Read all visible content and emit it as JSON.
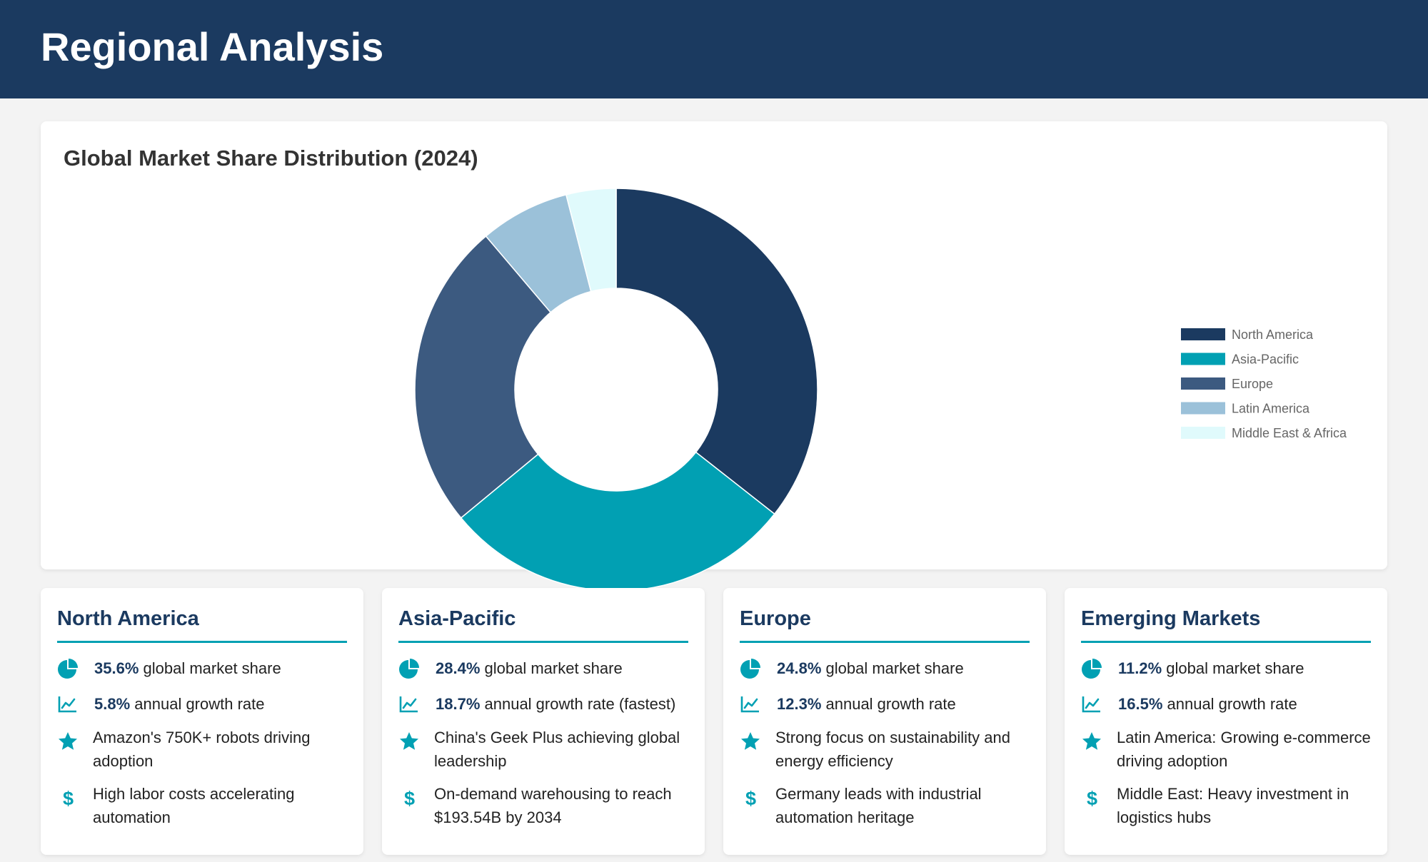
{
  "header": {
    "title": "Regional Analysis"
  },
  "chart_data": {
    "type": "pie",
    "title": "Global Market Share Distribution (2024)",
    "categories": [
      "North America",
      "Asia-Pacific",
      "Europe",
      "Latin America",
      "Middle East & Africa"
    ],
    "values": [
      35.6,
      28.4,
      24.8,
      7.2,
      4.0
    ],
    "colors": [
      "#1b3a60",
      "#01a0b3",
      "#3c5a80",
      "#9bc1d9",
      "#e0fafc"
    ],
    "legend_position": "right"
  },
  "cards": [
    {
      "title": "North America",
      "items": [
        {
          "icon": "pie-chart-icon",
          "stat": "35.6%",
          "text": " global market share"
        },
        {
          "icon": "line-chart-icon",
          "stat": "5.8%",
          "text": " annual growth rate"
        },
        {
          "icon": "star-icon",
          "stat": "",
          "text": "Amazon's 750K+ robots driving adoption"
        },
        {
          "icon": "dollar-icon",
          "stat": "",
          "text": "High labor costs accelerating automation"
        }
      ]
    },
    {
      "title": "Asia-Pacific",
      "items": [
        {
          "icon": "pie-chart-icon",
          "stat": "28.4%",
          "text": " global market share"
        },
        {
          "icon": "line-chart-icon",
          "stat": "18.7%",
          "text": " annual growth rate (fastest)"
        },
        {
          "icon": "star-icon",
          "stat": "",
          "text": "China's Geek Plus achieving global leadership"
        },
        {
          "icon": "dollar-icon",
          "stat": "",
          "text": "On-demand warehousing to reach $193.54B by 2034"
        }
      ]
    },
    {
      "title": "Europe",
      "items": [
        {
          "icon": "pie-chart-icon",
          "stat": "24.8%",
          "text": " global market share"
        },
        {
          "icon": "line-chart-icon",
          "stat": "12.3%",
          "text": " annual growth rate"
        },
        {
          "icon": "star-icon",
          "stat": "",
          "text": "Strong focus on sustainability and energy efficiency"
        },
        {
          "icon": "dollar-icon",
          "stat": "",
          "text": "Germany leads with industrial automation heritage"
        }
      ]
    },
    {
      "title": "Emerging Markets",
      "items": [
        {
          "icon": "pie-chart-icon",
          "stat": "11.2%",
          "text": " global market share"
        },
        {
          "icon": "line-chart-icon",
          "stat": "16.5%",
          "text": " annual growth rate"
        },
        {
          "icon": "star-icon",
          "stat": "",
          "text": "Latin America: Growing e-commerce driving adoption"
        },
        {
          "icon": "dollar-icon",
          "stat": "",
          "text": "Middle East: Heavy investment in logistics hubs"
        }
      ]
    }
  ]
}
